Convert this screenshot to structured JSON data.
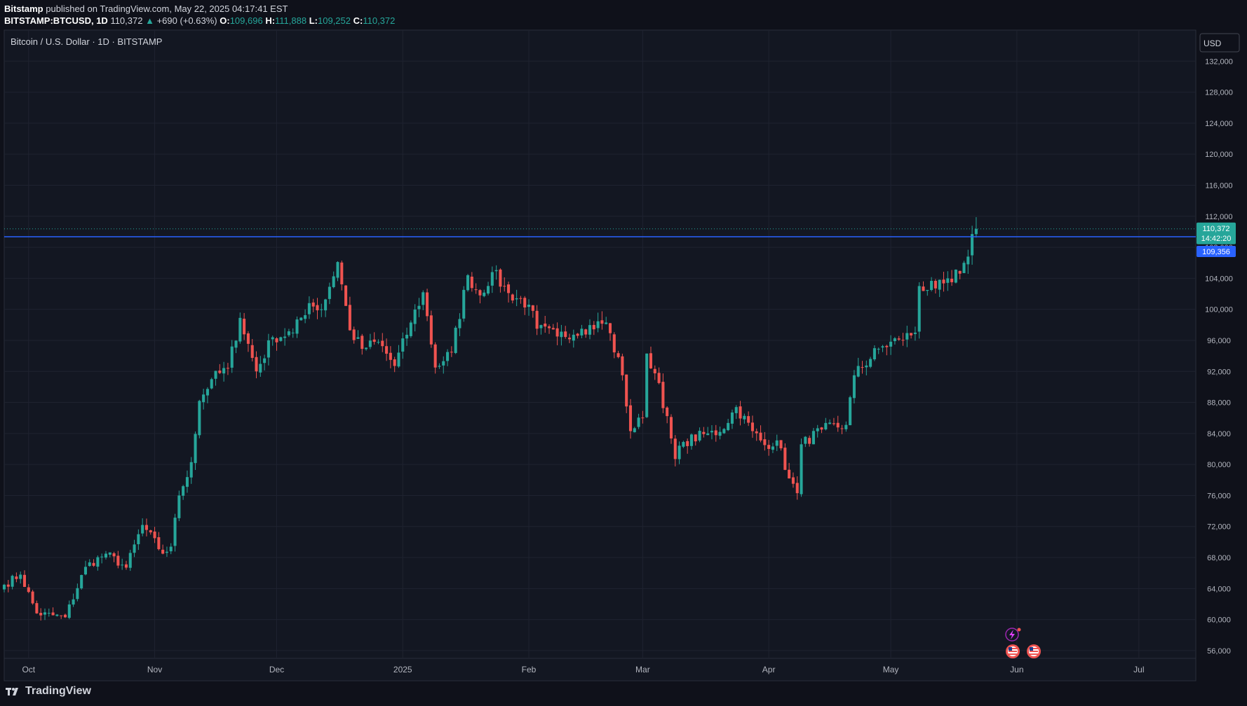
{
  "header": {
    "publisher": "Bitstamp",
    "published_text": "published on TradingView.com, May 22, 2025 04:17:41 EST",
    "symbol": "BITSTAMP:BTCUSD, 1D",
    "last": "110,372",
    "change": "+690 (+0.63%)",
    "open_label": "O:",
    "open": "109,696",
    "high_label": "H:",
    "high": "111,888",
    "low_label": "L:",
    "low": "109,252",
    "close_label": "C:",
    "close": "110,372"
  },
  "chart_data": {
    "type": "candlestick",
    "title": "Bitcoin / U.S. Dollar · 1D · BITSTAMP",
    "currency": "USD",
    "ylim": [
      55000,
      136000
    ],
    "y_ticks": [
      56000,
      60000,
      64000,
      68000,
      72000,
      76000,
      80000,
      84000,
      88000,
      92000,
      96000,
      100000,
      104000,
      108000,
      112000,
      116000,
      120000,
      124000,
      128000,
      132000
    ],
    "y_tick_labels": [
      "56,000",
      "60,000",
      "64,000",
      "68,000",
      "72,000",
      "76,000",
      "80,000",
      "84,000",
      "88,000",
      "92,000",
      "96,000",
      "100,000",
      "104,000",
      "108,000",
      "112,000",
      "116,000",
      "120,000",
      "124,000",
      "128,000",
      "132,000"
    ],
    "x_range": [
      "2024-09-25",
      "2025-07-15"
    ],
    "x_ticks": [
      {
        "label": "Oct",
        "date": "2024-10-01"
      },
      {
        "label": "Nov",
        "date": "2024-11-01"
      },
      {
        "label": "Dec",
        "date": "2024-12-01"
      },
      {
        "label": "2025",
        "date": "2025-01-01"
      },
      {
        "label": "Feb",
        "date": "2025-02-01"
      },
      {
        "label": "Mar",
        "date": "2025-03-01"
      },
      {
        "label": "Apr",
        "date": "2025-04-01"
      },
      {
        "label": "May",
        "date": "2025-05-01"
      },
      {
        "label": "Jun",
        "date": "2025-06-01"
      },
      {
        "label": "Jul",
        "date": "2025-07-01"
      }
    ],
    "series_start_date": "2024-09-25",
    "close_anchors": [
      [
        "2024-09-25",
        64500
      ],
      [
        "2024-09-29",
        65800
      ],
      [
        "2024-10-03",
        60800
      ],
      [
        "2024-10-10",
        60300
      ],
      [
        "2024-10-15",
        66800
      ],
      [
        "2024-10-20",
        68500
      ],
      [
        "2024-10-25",
        66700
      ],
      [
        "2024-10-29",
        72200
      ],
      [
        "2024-11-03",
        68500
      ],
      [
        "2024-11-05",
        69400
      ],
      [
        "2024-11-07",
        76000
      ],
      [
        "2024-11-10",
        80300
      ],
      [
        "2024-11-12",
        88200
      ],
      [
        "2024-11-15",
        91000
      ],
      [
        "2024-11-19",
        92400
      ],
      [
        "2024-11-22",
        98900
      ],
      [
        "2024-11-26",
        92000
      ],
      [
        "2024-11-30",
        96400
      ],
      [
        "2024-12-05",
        97000
      ],
      [
        "2024-12-09",
        100800
      ],
      [
        "2024-12-12",
        100000
      ],
      [
        "2024-12-16",
        106100
      ],
      [
        "2024-12-19",
        97300
      ],
      [
        "2024-12-22",
        94900
      ],
      [
        "2024-12-26",
        95800
      ],
      [
        "2024-12-30",
        92700
      ],
      [
        "2025-01-03",
        98300
      ],
      [
        "2025-01-06",
        102200
      ],
      [
        "2025-01-09",
        92500
      ],
      [
        "2025-01-13",
        94500
      ],
      [
        "2025-01-17",
        104400
      ],
      [
        "2025-01-20",
        101800
      ],
      [
        "2025-01-23",
        104800
      ],
      [
        "2025-01-27",
        102100
      ],
      [
        "2025-02-01",
        100600
      ],
      [
        "2025-02-03",
        97500
      ],
      [
        "2025-02-08",
        96500
      ],
      [
        "2025-02-14",
        97500
      ],
      [
        "2025-02-20",
        98300
      ],
      [
        "2025-02-24",
        91500
      ],
      [
        "2025-02-26",
        84300
      ],
      [
        "2025-03-01",
        86000
      ],
      [
        "2025-03-02",
        94300
      ],
      [
        "2025-03-05",
        90500
      ],
      [
        "2025-03-09",
        80700
      ],
      [
        "2025-03-11",
        82900
      ],
      [
        "2025-03-17",
        84000
      ],
      [
        "2025-03-20",
        84200
      ],
      [
        "2025-03-24",
        87400
      ],
      [
        "2025-03-28",
        84300
      ],
      [
        "2025-03-31",
        82500
      ],
      [
        "2025-04-03",
        83100
      ],
      [
        "2025-04-06",
        78200
      ],
      [
        "2025-04-08",
        76300
      ],
      [
        "2025-04-09",
        82600
      ],
      [
        "2025-04-14",
        84500
      ],
      [
        "2025-04-20",
        85100
      ],
      [
        "2025-04-22",
        91500
      ],
      [
        "2025-04-28",
        94900
      ],
      [
        "2025-05-03",
        96100
      ],
      [
        "2025-05-07",
        97000
      ],
      [
        "2025-05-08",
        103000
      ],
      [
        "2025-05-12",
        102700
      ],
      [
        "2025-05-16",
        103500
      ],
      [
        "2025-05-19",
        106000
      ],
      [
        "2025-05-20",
        106800
      ],
      [
        "2025-05-21",
        109700
      ],
      [
        "2025-05-22",
        110372
      ]
    ],
    "last_price": 110372,
    "last_price_label": "110,372",
    "countdown": "14:42:20",
    "horizontal_line": 109356,
    "horizontal_line_label": "109,356",
    "colors": {
      "up": "#26a69a",
      "down": "#ef5350",
      "grid": "#1f2330",
      "background": "#131722",
      "hline": "#2962ff",
      "axis_text": "#b2b5be"
    }
  },
  "footer": {
    "brand": "TradingView"
  }
}
